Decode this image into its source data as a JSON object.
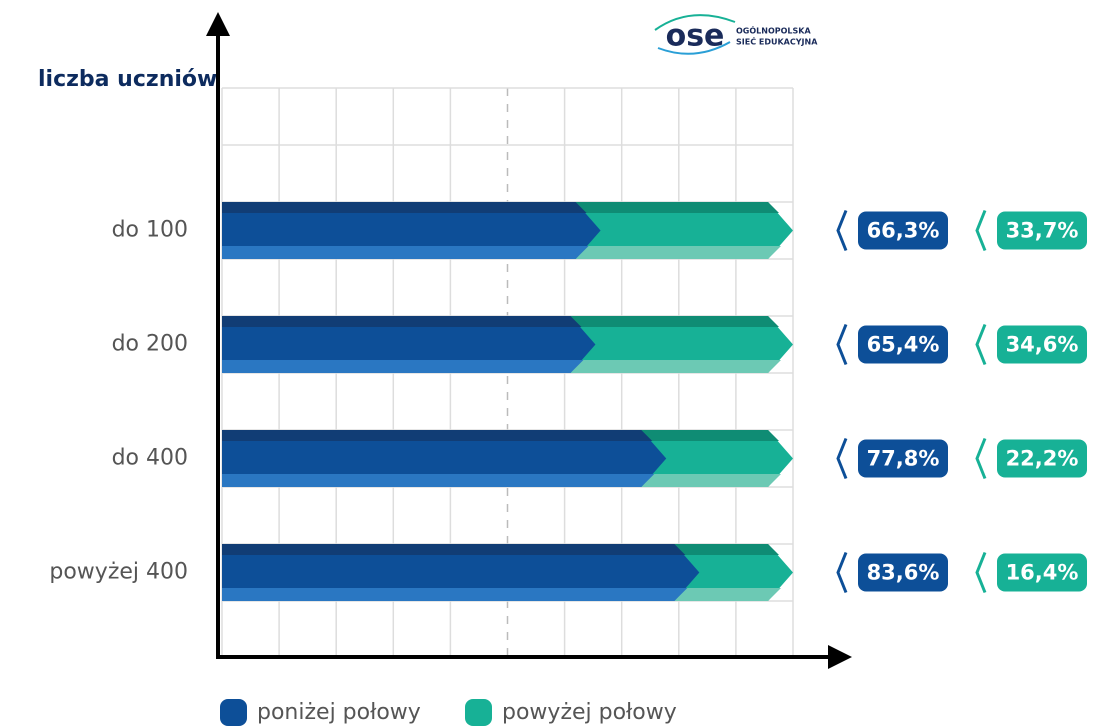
{
  "chart_data": {
    "type": "stacked-barh",
    "y_label": "liczba uczniów",
    "logo": {
      "mark": "ose",
      "line1": "OGÓLNOPOLSKA",
      "line2": "SIEĆ EDUKACYJNA"
    },
    "categories": [
      "do 100",
      "do 200",
      "do 400",
      "powyżej 400"
    ],
    "series": [
      {
        "name": "poniżej połowy",
        "color": "#0d4f98",
        "values": [
          66.3,
          65.4,
          77.8,
          83.6
        ],
        "value_labels": [
          "66,3%",
          "65,4%",
          "77,8%",
          "83,6%"
        ]
      },
      {
        "name": "powyżej połowy",
        "color": "#17b196",
        "values": [
          33.7,
          34.6,
          22.2,
          16.4
        ],
        "value_labels": [
          "33,7%",
          "34,6%",
          "22,2%",
          "16,4%"
        ]
      }
    ],
    "xlim": [
      0,
      100
    ],
    "grid": true
  }
}
